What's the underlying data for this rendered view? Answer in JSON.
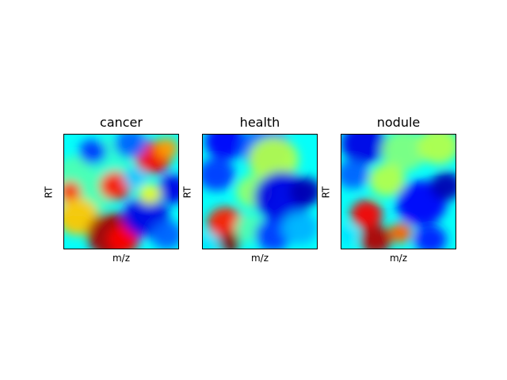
{
  "chart_data": [
    {
      "type": "heatmap",
      "title": "cancer",
      "xlabel": "m/z",
      "ylabel": "RT",
      "colormap": "jet",
      "grid": false,
      "blobs": [
        {
          "x": 0.15,
          "y": 0.45,
          "r": 0.3,
          "v": 0.45
        },
        {
          "x": 0.4,
          "y": 0.2,
          "r": 0.2,
          "v": 0.42
        },
        {
          "x": 0.78,
          "y": 0.2,
          "r": 0.16,
          "v": 0.88
        },
        {
          "x": 0.9,
          "y": 0.12,
          "r": 0.1,
          "v": 0.72
        },
        {
          "x": 0.45,
          "y": 0.45,
          "r": 0.14,
          "v": 0.85
        },
        {
          "x": 0.05,
          "y": 0.5,
          "r": 0.1,
          "v": 0.82
        },
        {
          "x": 0.12,
          "y": 0.72,
          "r": 0.18,
          "v": 0.68
        },
        {
          "x": 0.42,
          "y": 0.88,
          "r": 0.22,
          "v": 0.96
        },
        {
          "x": 0.52,
          "y": 0.92,
          "r": 0.14,
          "v": 0.88
        },
        {
          "x": 0.25,
          "y": 0.15,
          "r": 0.12,
          "v": 0.18
        },
        {
          "x": 0.58,
          "y": 0.08,
          "r": 0.14,
          "v": 0.22
        },
        {
          "x": 0.95,
          "y": 0.48,
          "r": 0.14,
          "v": 0.1
        },
        {
          "x": 0.72,
          "y": 0.72,
          "r": 0.2,
          "v": 0.1
        },
        {
          "x": 0.9,
          "y": 0.88,
          "r": 0.14,
          "v": 0.22
        },
        {
          "x": 0.75,
          "y": 0.52,
          "r": 0.1,
          "v": 0.6
        },
        {
          "x": 0.62,
          "y": 0.38,
          "r": 0.1,
          "v": 0.32
        }
      ]
    },
    {
      "type": "heatmap",
      "title": "health",
      "xlabel": "m/z",
      "ylabel": "RT",
      "colormap": "jet",
      "grid": false,
      "blobs": [
        {
          "x": 0.2,
          "y": 0.06,
          "r": 0.18,
          "v": 0.12
        },
        {
          "x": 0.55,
          "y": 0.12,
          "r": 0.22,
          "v": 0.22
        },
        {
          "x": 0.12,
          "y": 0.35,
          "r": 0.16,
          "v": 0.18
        },
        {
          "x": 0.62,
          "y": 0.22,
          "r": 0.22,
          "v": 0.55
        },
        {
          "x": 0.45,
          "y": 0.5,
          "r": 0.16,
          "v": 0.52
        },
        {
          "x": 0.7,
          "y": 0.55,
          "r": 0.25,
          "v": 0.1
        },
        {
          "x": 0.9,
          "y": 0.5,
          "r": 0.14,
          "v": 0.05
        },
        {
          "x": 0.2,
          "y": 0.78,
          "r": 0.16,
          "v": 0.85
        },
        {
          "x": 0.23,
          "y": 0.95,
          "r": 0.1,
          "v": 1.0
        },
        {
          "x": 0.42,
          "y": 0.82,
          "r": 0.14,
          "v": 0.45
        },
        {
          "x": 0.62,
          "y": 0.88,
          "r": 0.16,
          "v": 0.18
        },
        {
          "x": 0.85,
          "y": 0.82,
          "r": 0.16,
          "v": 0.3
        },
        {
          "x": 0.05,
          "y": 0.95,
          "r": 0.1,
          "v": 0.35
        }
      ]
    },
    {
      "type": "heatmap",
      "title": "nodule",
      "xlabel": "m/z",
      "ylabel": "RT",
      "colormap": "jet",
      "grid": false,
      "blobs": [
        {
          "x": 0.2,
          "y": 0.08,
          "r": 0.2,
          "v": 0.1
        },
        {
          "x": 0.55,
          "y": 0.14,
          "r": 0.2,
          "v": 0.5
        },
        {
          "x": 0.85,
          "y": 0.1,
          "r": 0.18,
          "v": 0.55
        },
        {
          "x": 0.1,
          "y": 0.35,
          "r": 0.14,
          "v": 0.22
        },
        {
          "x": 0.4,
          "y": 0.4,
          "r": 0.16,
          "v": 0.55
        },
        {
          "x": 0.7,
          "y": 0.6,
          "r": 0.22,
          "v": 0.12
        },
        {
          "x": 0.92,
          "y": 0.45,
          "r": 0.14,
          "v": 0.05
        },
        {
          "x": 0.22,
          "y": 0.7,
          "r": 0.14,
          "v": 0.88
        },
        {
          "x": 0.3,
          "y": 0.92,
          "r": 0.14,
          "v": 0.95
        },
        {
          "x": 0.52,
          "y": 0.86,
          "r": 0.1,
          "v": 0.78
        },
        {
          "x": 0.78,
          "y": 0.92,
          "r": 0.14,
          "v": 0.15
        },
        {
          "x": 0.05,
          "y": 0.88,
          "r": 0.1,
          "v": 0.35
        }
      ]
    }
  ]
}
